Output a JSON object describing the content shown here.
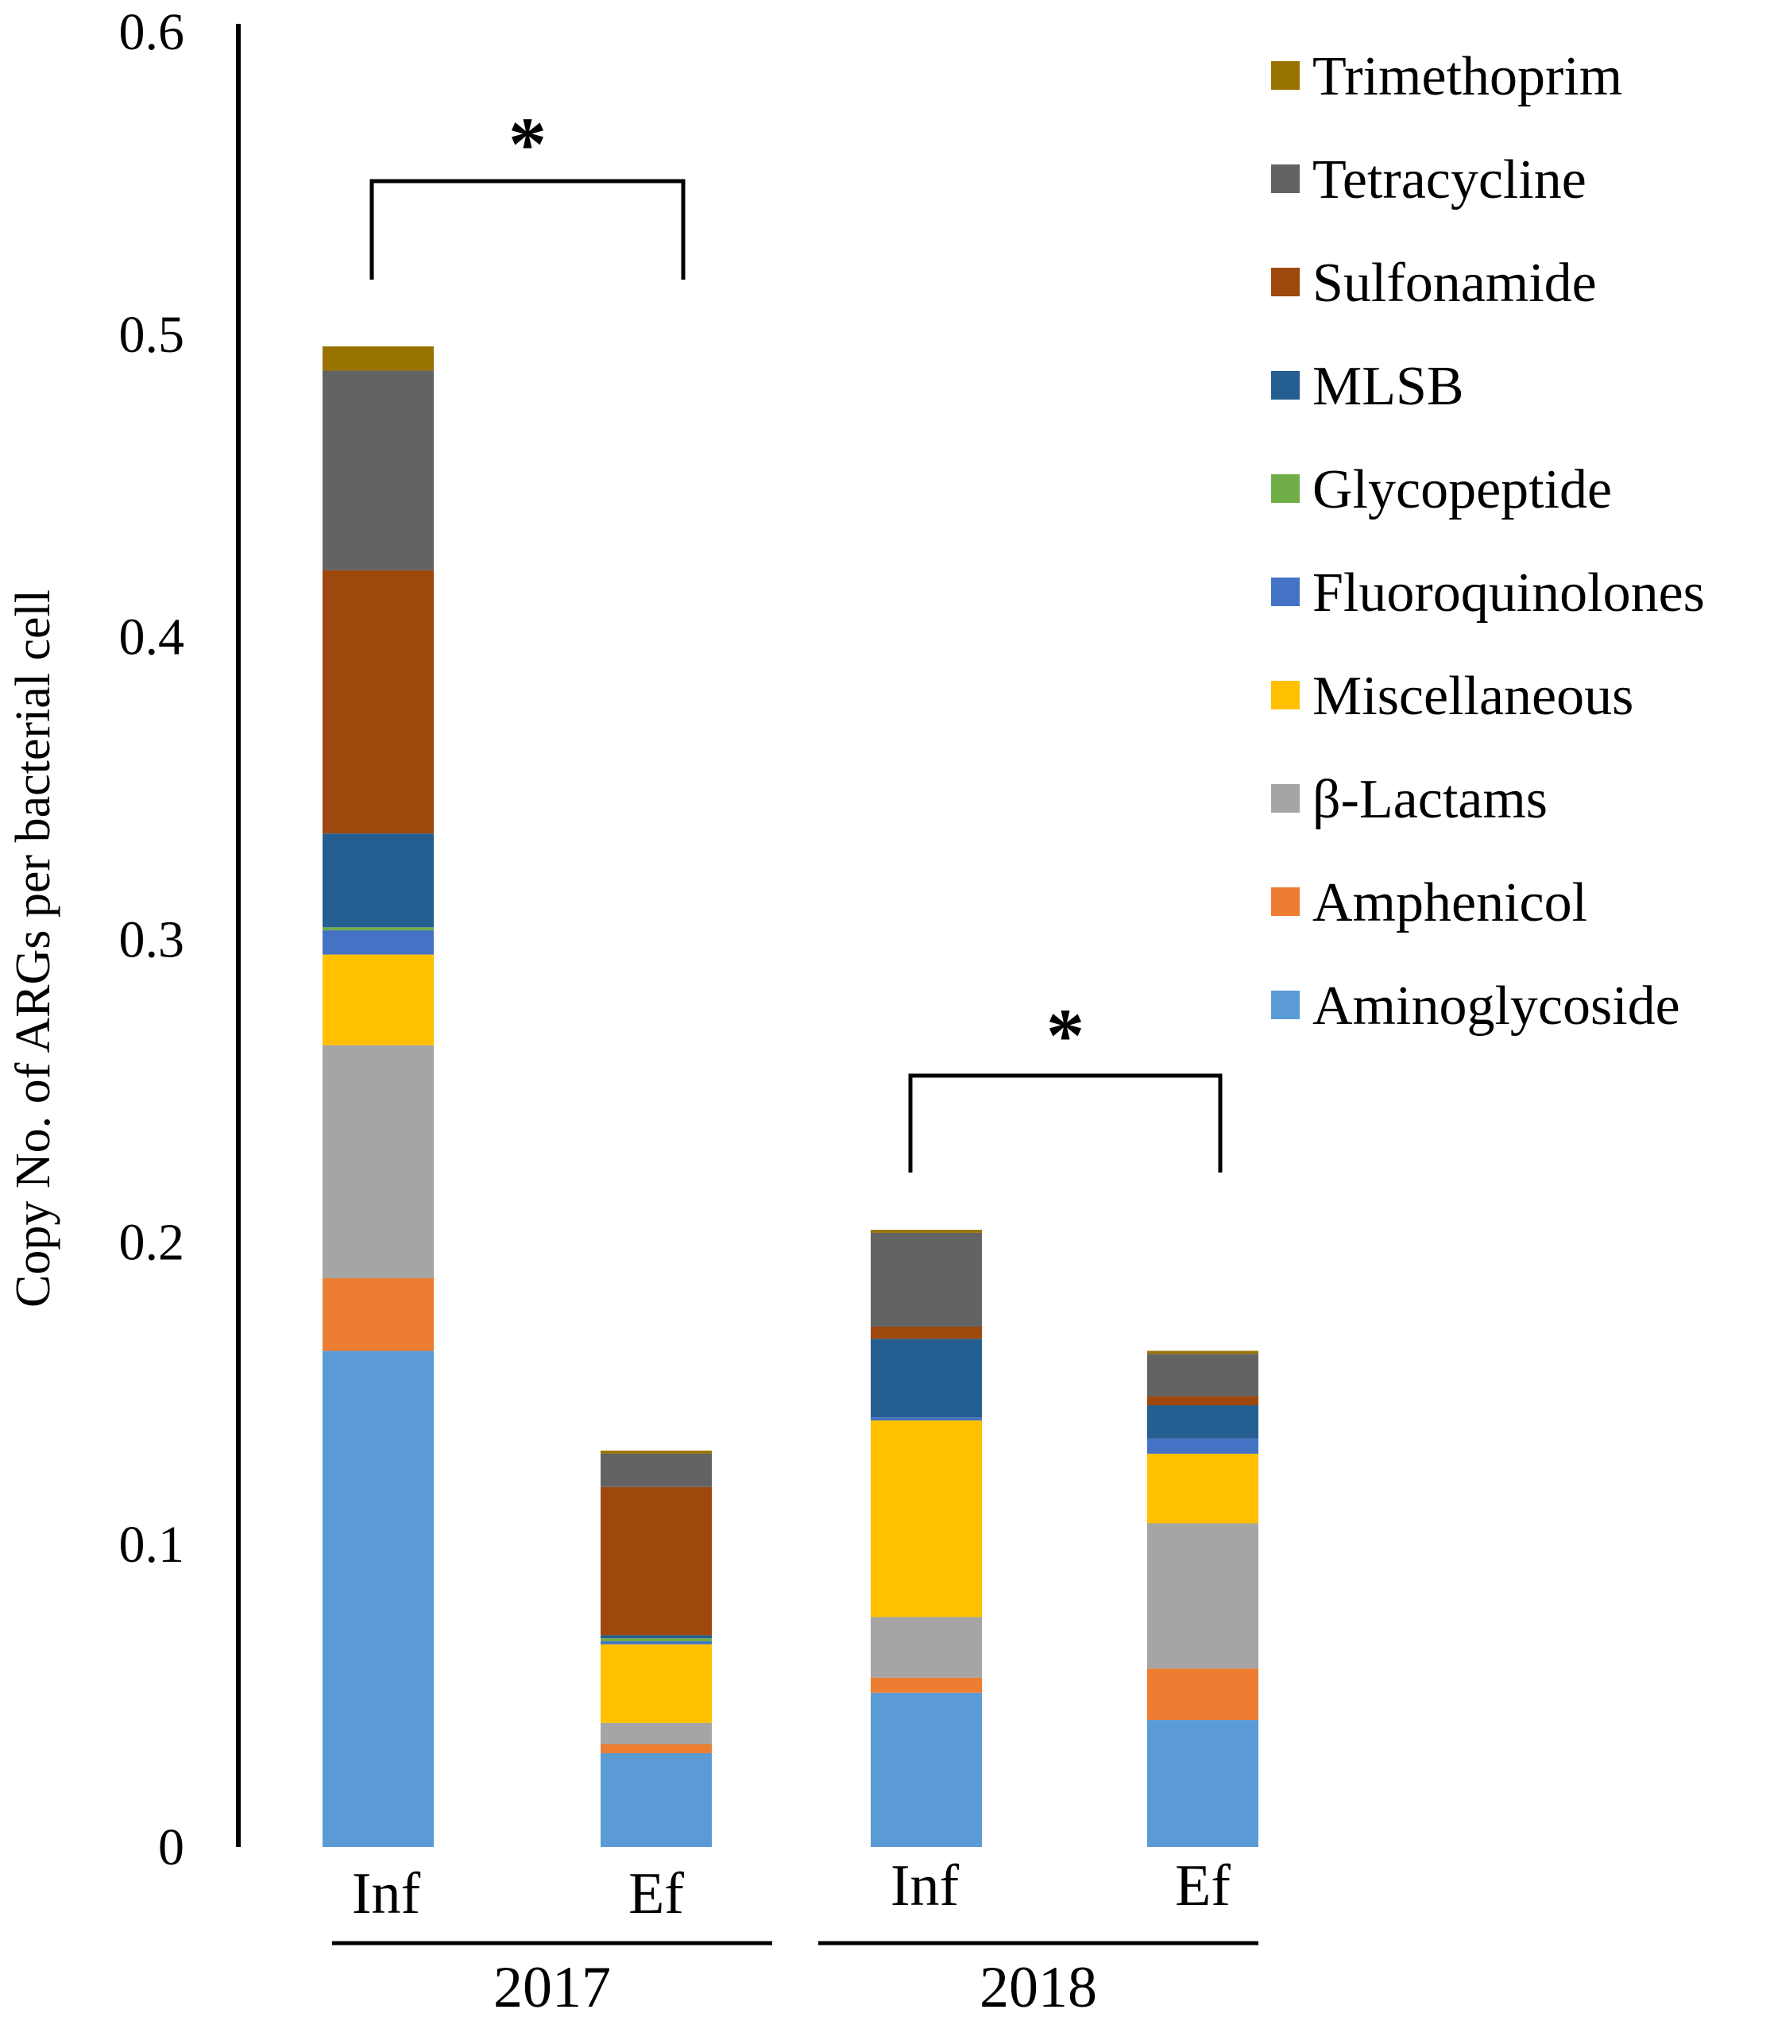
{
  "chart_data": {
    "type": "bar",
    "stacked": true,
    "title": "",
    "xlabel": "",
    "ylabel": "Copy No. of ARGs per bacterial cell",
    "ylim": [
      0,
      0.6
    ],
    "yticks": [
      "0",
      "0.1",
      "0.2",
      "0.3",
      "0.4",
      "0.5",
      "0.6"
    ],
    "grid": false,
    "legend_position": "top-right",
    "categories": [
      "Inf",
      "Ef",
      "Inf",
      "Ef"
    ],
    "groups": [
      {
        "label": "2017",
        "categories": [
          0,
          1
        ]
      },
      {
        "label": "2018",
        "categories": [
          2,
          3
        ]
      }
    ],
    "series": [
      {
        "name": "Aminoglycoside",
        "color": "#5B9BD5",
        "values": [
          0.164,
          0.031,
          0.051,
          0.042
        ]
      },
      {
        "name": "Amphenicol",
        "color": "#ED7D31",
        "values": [
          0.024,
          0.003,
          0.005,
          0.017
        ]
      },
      {
        "name": "β-Lactams",
        "color": "#A5A5A5",
        "values": [
          0.077,
          0.007,
          0.02,
          0.048
        ]
      },
      {
        "name": "Miscellaneous",
        "color": "#FFC000",
        "values": [
          0.03,
          0.026,
          0.065,
          0.023
        ]
      },
      {
        "name": "Fluoroquinolones",
        "color": "#4472C4",
        "values": [
          0.008,
          0.001,
          0.001,
          0.005
        ]
      },
      {
        "name": "Glycopeptide",
        "color": "#70AD47",
        "values": [
          0.001,
          0.001,
          0.0,
          0.0
        ]
      },
      {
        "name": "MLSB",
        "color": "#255E91",
        "values": [
          0.031,
          0.001,
          0.026,
          0.011
        ]
      },
      {
        "name": "Sulfonamide",
        "color": "#9E480E",
        "values": [
          0.087,
          0.049,
          0.004,
          0.003
        ]
      },
      {
        "name": "Tetracycline",
        "color": "#636363",
        "values": [
          0.066,
          0.011,
          0.031,
          0.014
        ]
      },
      {
        "name": "Trimethoprim",
        "color": "#997300",
        "values": [
          0.008,
          0.001,
          0.001,
          0.001
        ]
      }
    ],
    "annotations": [
      {
        "type": "significance",
        "text": "*",
        "from": 0,
        "to": 1
      },
      {
        "type": "significance",
        "text": "*",
        "from": 2,
        "to": 3
      }
    ]
  }
}
